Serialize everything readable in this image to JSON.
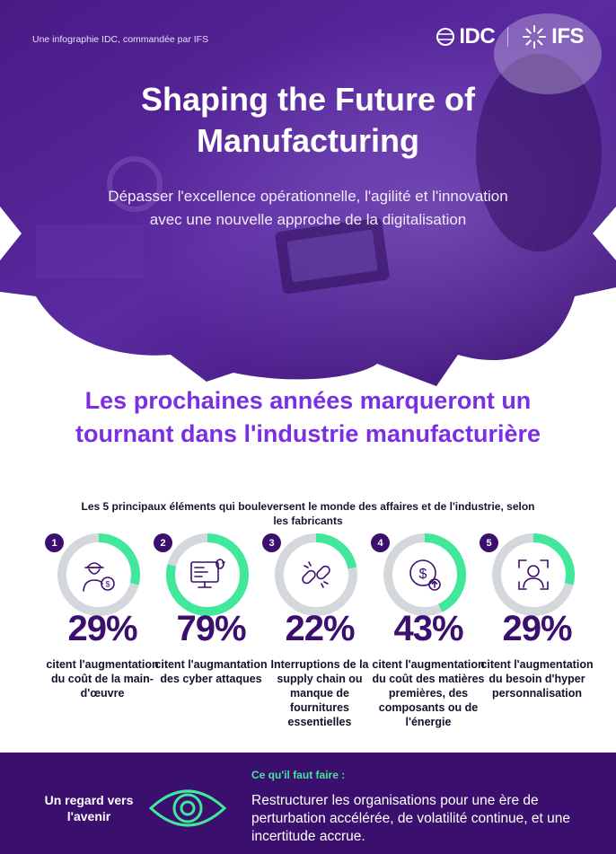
{
  "header": {
    "attribution": "Une infographie IDC, commandée par IFS",
    "logo_idc": "IDC",
    "logo_ifs": "IFS",
    "title": "Shaping the Future of Manufacturing",
    "subtitle": "Dépasser l'excellence opérationnelle, l'agilité et l'innovation avec une nouvelle approche de la digitalisation"
  },
  "section": {
    "heading": "Les prochaines années marqueront un tournant dans l'industrie manufacturière",
    "subheading": "Les 5 principaux éléments qui bouleversent le monde des affaires et de l'industrie, selon les fabricants"
  },
  "stats": [
    {
      "number": "1",
      "value": "29%",
      "percent": 29,
      "icon": "worker-cost-icon",
      "description": "citent l'augmentation du coût de la main-d'œuvre"
    },
    {
      "number": "2",
      "value": "79%",
      "percent": 79,
      "icon": "cyber-attack-icon",
      "description": "citent l'augmantation des cyber attaques"
    },
    {
      "number": "3",
      "value": "22%",
      "percent": 22,
      "icon": "broken-chain-icon",
      "description": "Interruptions de la supply chain ou manque de fournitures essentielles"
    },
    {
      "number": "4",
      "value": "43%",
      "percent": 43,
      "icon": "rising-cost-icon",
      "description": "citent l'augmentation du coût des matières premières, des composants ou de l'énergie"
    },
    {
      "number": "5",
      "value": "29%",
      "percent": 29,
      "icon": "personalization-icon",
      "description": "citent l'augmentation du besoin d'hyper personnalisation"
    }
  ],
  "colors": {
    "ring_track": "#d4d8dd",
    "ring_fill": "#41e89b",
    "primary_dark": "#3b0f6e",
    "accent_purple": "#7b2fe3"
  },
  "footer": {
    "label": "Un regard vers l'avenir",
    "todo_label": "Ce qu'il faut faire :",
    "todo_text": "Restructurer les organisations pour une ère de perturbation accélérée, de volatilité continue, et une incertitude accrue."
  }
}
